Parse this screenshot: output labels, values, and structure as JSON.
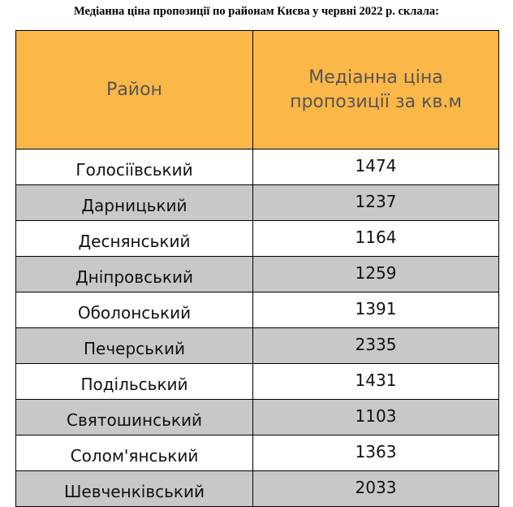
{
  "title": "Медіанна ціна пропозиції по районам Києва у червні 2022 р. склала:",
  "colors": {
    "header_bg": "#fbb747",
    "row_odd_bg": "#ffffff",
    "row_even_bg": "#c8c8c8",
    "border": "#000000"
  },
  "table": {
    "headers": {
      "district": "Район",
      "price": "Медіанна ціна пропозиції за кв.м"
    },
    "rows": [
      {
        "district": "Голосіївський",
        "price": "1474"
      },
      {
        "district": "Дарницький",
        "price": "1237"
      },
      {
        "district": "Деснянський",
        "price": "1164"
      },
      {
        "district": "Дніпровський",
        "price": "1259"
      },
      {
        "district": "Оболонський",
        "price": "1391"
      },
      {
        "district": "Печерський",
        "price": "2335"
      },
      {
        "district": "Подільський",
        "price": "1431"
      },
      {
        "district": "Святошинський",
        "price": "1103"
      },
      {
        "district": "Солом'янський",
        "price": "1363"
      },
      {
        "district": "Шевченківський",
        "price": "2033"
      }
    ]
  }
}
